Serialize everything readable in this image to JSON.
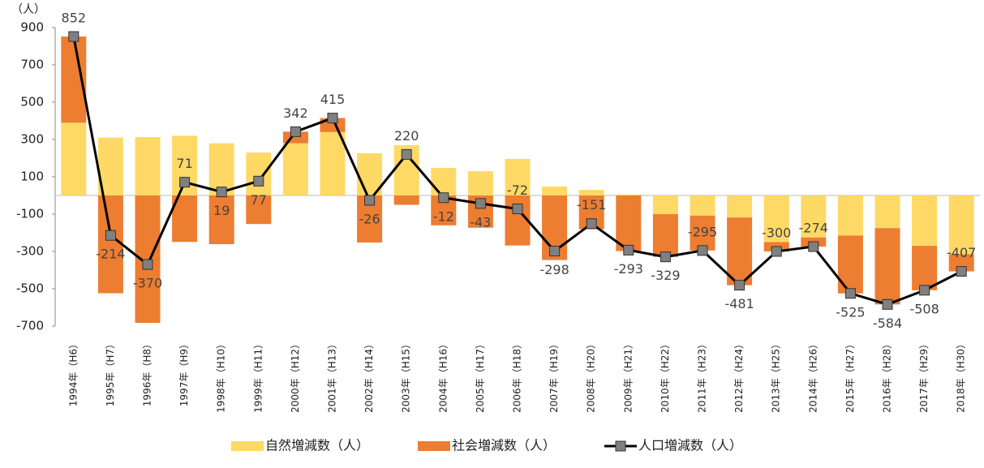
{
  "chart_data": {
    "type": "bar_line",
    "y_unit": "（人）",
    "categories": [
      "1994年（H6）",
      "1995年（H7）",
      "1996年（H8）",
      "1997年（H9）",
      "1998年（H10）",
      "1999年（H11）",
      "2000年（H12）",
      "2001年（H13）",
      "2002年（H14）",
      "2003年（H15）",
      "2004年（H16）",
      "2005年（H17）",
      "2006年（H18）",
      "2007年（H19）",
      "2008年（H20）",
      "2009年（H21）",
      "2010年（H22）",
      "2011年（H23）",
      "2012年（H24）",
      "2013年（H25）",
      "2014年（H26）",
      "2015年（H27）",
      "2016年（H28）",
      "2017年（H29）",
      "2018年（H30）"
    ],
    "series": [
      {
        "name": "自然増減数（人）",
        "color": "#ffd966",
        "kind": "bar",
        "values": [
          390,
          310,
          313,
          320,
          280,
          230,
          280,
          340,
          226,
          270,
          148,
          130,
          196,
          48,
          30,
          5,
          -100,
          -108,
          -118,
          -250,
          -225,
          -215,
          -175,
          -270,
          -315
        ]
      },
      {
        "name": "社会増減数（人）",
        "color": "#ed7d31",
        "kind": "bar",
        "values": [
          462,
          -524,
          -683,
          -249,
          -261,
          -153,
          62,
          75,
          -252,
          -50,
          -160,
          -173,
          -268,
          -346,
          -181,
          -298,
          -229,
          -187,
          -363,
          -50,
          -49,
          -310,
          -409,
          -238,
          -92
        ]
      },
      {
        "name": "人口増減数（人）",
        "color": "#000000",
        "marker_color": "#808080",
        "kind": "line",
        "values": [
          852,
          -214,
          -370,
          71,
          19,
          77,
          342,
          415,
          -26,
          220,
          -12,
          -43,
          -72,
          -298,
          -151,
          -293,
          -329,
          -295,
          -481,
          -300,
          -274,
          -525,
          -584,
          -508,
          -407
        ]
      }
    ],
    "ylim": [
      -700,
      900
    ],
    "yticks": [
      -700,
      -500,
      -300,
      -100,
      100,
      300,
      500,
      700,
      900
    ]
  }
}
